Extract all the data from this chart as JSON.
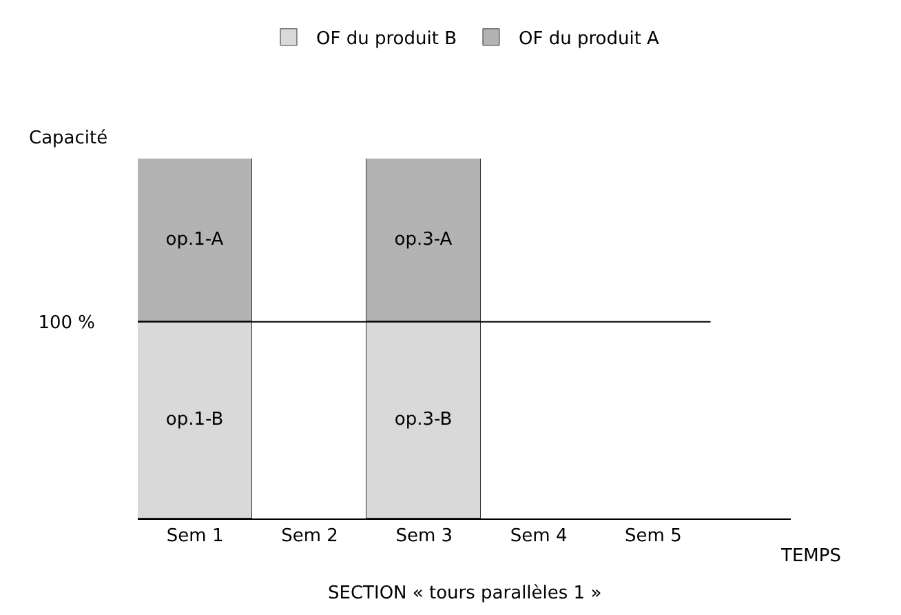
{
  "chart_data": {
    "type": "bar",
    "stacked": true,
    "categories": [
      "Sem 1",
      "Sem 2",
      "Sem 3",
      "Sem 4",
      "Sem 5"
    ],
    "series": [
      {
        "name": "OF du produit B",
        "color": "#d9d9d9",
        "values": [
          100,
          null,
          100,
          null,
          null
        ],
        "value_labels": [
          "op.1-B",
          null,
          "op.3-B",
          null,
          null
        ]
      },
      {
        "name": "OF du produit A",
        "color": "#b3b3b3",
        "values": [
          83,
          null,
          83,
          null,
          null
        ],
        "value_labels": [
          "op.1-A",
          null,
          "op.3-A",
          null,
          null
        ]
      }
    ],
    "ylabel": "Capacité",
    "xlabel": "TEMPS",
    "ylim": [
      0,
      183
    ],
    "yticks": [
      {
        "value": 100,
        "label": "100 %"
      }
    ],
    "ref_lines": [
      {
        "axis": "y",
        "value": 100
      }
    ],
    "annotations": [
      "SECTION « tours parallèles 1 »"
    ],
    "legend": "top"
  }
}
